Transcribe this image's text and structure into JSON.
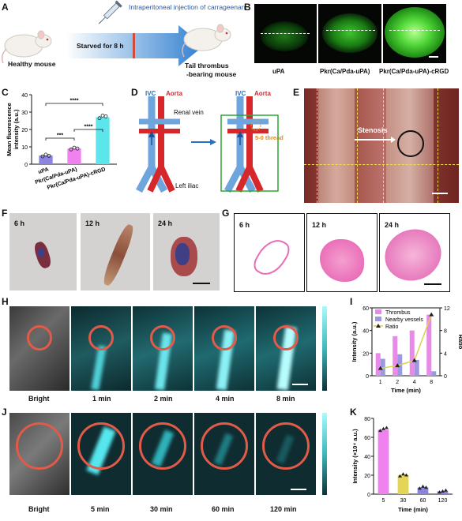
{
  "figure": {
    "panel_letters": [
      "A",
      "B",
      "C",
      "D",
      "E",
      "F",
      "G",
      "H",
      "I",
      "J",
      "K"
    ],
    "A": {
      "injection": "Intraperitoneal injection of carrageenan",
      "starved": "Starved for 8 h",
      "healthy": "Healthy mouse",
      "model_l1": "Tail thrombus",
      "model_l2": "-bearing mouse"
    },
    "B": {
      "labels": [
        "uPA",
        "Pkr(Ca/Pda-uPA)",
        "Pkr(Ca/Pda-uPA)-cRGD"
      ]
    },
    "D": {
      "ivc": "IVC",
      "aorta": "Aorta",
      "renal_vein": "Renal vein",
      "left_iliac": "Left iliac",
      "thread": "5-0 thread"
    },
    "E": {
      "stenosis": "Stenosis"
    },
    "F": {
      "times": [
        "6 h",
        "12 h",
        "24 h"
      ]
    },
    "G": {
      "times": [
        "6 h",
        "12 h",
        "24 h"
      ]
    },
    "H": {
      "labels": [
        "Bright",
        "1 min",
        "2 min",
        "4 min",
        "8 min"
      ]
    },
    "J": {
      "labels": [
        "Bright",
        "5 min",
        "30 min",
        "60 min",
        "120 min"
      ]
    }
  },
  "chart_data": [
    {
      "panel": "C",
      "type": "bar",
      "categories": [
        "uPA",
        "Pkr(Ca/Pda-uPA)",
        "Pkr(Ca/Pda-uPA)-cRGD"
      ],
      "values": [
        5,
        9,
        27
      ],
      "points": [
        [
          4.5,
          5.5,
          4.8
        ],
        [
          8.5,
          9.5,
          9.0
        ],
        [
          26.5,
          28.0,
          27.5
        ]
      ],
      "colors": [
        "#8b84e3",
        "#ef82ef",
        "#5ce6ec"
      ],
      "ylabel": "Mean fluorescence intensity (a.u.)",
      "ylim": [
        0,
        40
      ],
      "yticks": [
        0,
        10,
        20,
        30,
        40
      ],
      "significance": [
        {
          "pair": [
            0,
            1
          ],
          "label": "***"
        },
        {
          "pair": [
            1,
            2
          ],
          "label": "****"
        },
        {
          "pair": [
            0,
            2
          ],
          "label": "****"
        }
      ]
    },
    {
      "panel": "I",
      "type": "bar",
      "categories": [
        "1",
        "2",
        "4",
        "8"
      ],
      "series": [
        {
          "name": "Thrombus",
          "values": [
            20,
            35,
            40,
            54
          ],
          "color": "#e88ae8"
        },
        {
          "name": "Nearby vessels",
          "values": [
            15,
            19,
            14,
            4
          ],
          "color": "#9d99e0"
        }
      ],
      "line": {
        "name": "Ratio",
        "values": [
          1.3,
          1.8,
          2.7,
          10.8
        ],
        "color": "#d9d34a"
      },
      "xlabel": "Time (min)",
      "ylabel": "Intensity (a.u.)",
      "y2label": "Ratio",
      "ylim": [
        0,
        60
      ],
      "yticks": [
        0,
        20,
        40,
        60
      ],
      "y2lim": [
        0,
        12
      ],
      "y2ticks": [
        0,
        4,
        8,
        12
      ]
    },
    {
      "panel": "K",
      "type": "bar",
      "categories": [
        "5",
        "30",
        "60",
        "120"
      ],
      "values": [
        68,
        20,
        7,
        3
      ],
      "points": [
        [
          67,
          69,
          70
        ],
        [
          19,
          21,
          20
        ],
        [
          6,
          8,
          7
        ],
        [
          2,
          3,
          4
        ]
      ],
      "colors": [
        "#ef82ef",
        "#e2d558",
        "#8b84e3",
        "#8b84e3"
      ],
      "xlabel": "Time (min)",
      "ylabel": "Intensity (×10⁴ a.u.)",
      "ylim": [
        0,
        80
      ],
      "yticks": [
        0,
        20,
        40,
        60,
        80
      ]
    }
  ]
}
